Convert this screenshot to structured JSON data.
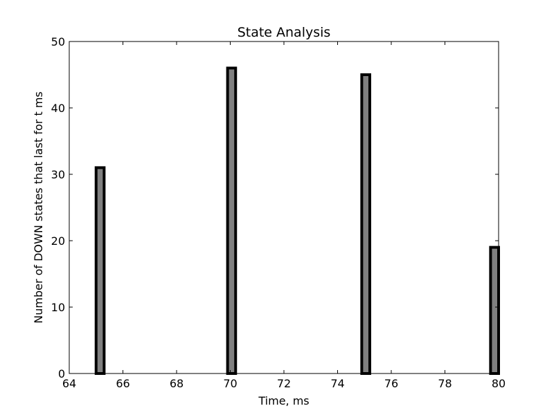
{
  "chart_data": {
    "type": "bar",
    "title": "State Analysis",
    "xlabel": "Time, ms",
    "ylabel": "Number of DOWN states that last for t ms",
    "xlim": [
      64,
      80
    ],
    "ylim": [
      0,
      50
    ],
    "xticks": [
      "64",
      "66",
      "68",
      "70",
      "72",
      "74",
      "76",
      "78",
      "80"
    ],
    "yticks": [
      "0",
      "10",
      "20",
      "30",
      "40",
      "50"
    ],
    "bin_width": 0.3,
    "bars": [
      {
        "x": 65.0,
        "value": 31
      },
      {
        "x": 65.3,
        "value": 0
      },
      {
        "x": 69.8,
        "value": 0
      },
      {
        "x": 69.9,
        "value": 46
      },
      {
        "x": 70.2,
        "value": 0
      },
      {
        "x": 74.7,
        "value": 0
      },
      {
        "x": 74.9,
        "value": 45
      },
      {
        "x": 75.2,
        "value": 0
      },
      {
        "x": 79.4,
        "value": 0
      },
      {
        "x": 79.7,
        "value": 19
      }
    ],
    "bar_color": "#808080",
    "edge_color": "#000000",
    "grid": false,
    "legend": false
  }
}
